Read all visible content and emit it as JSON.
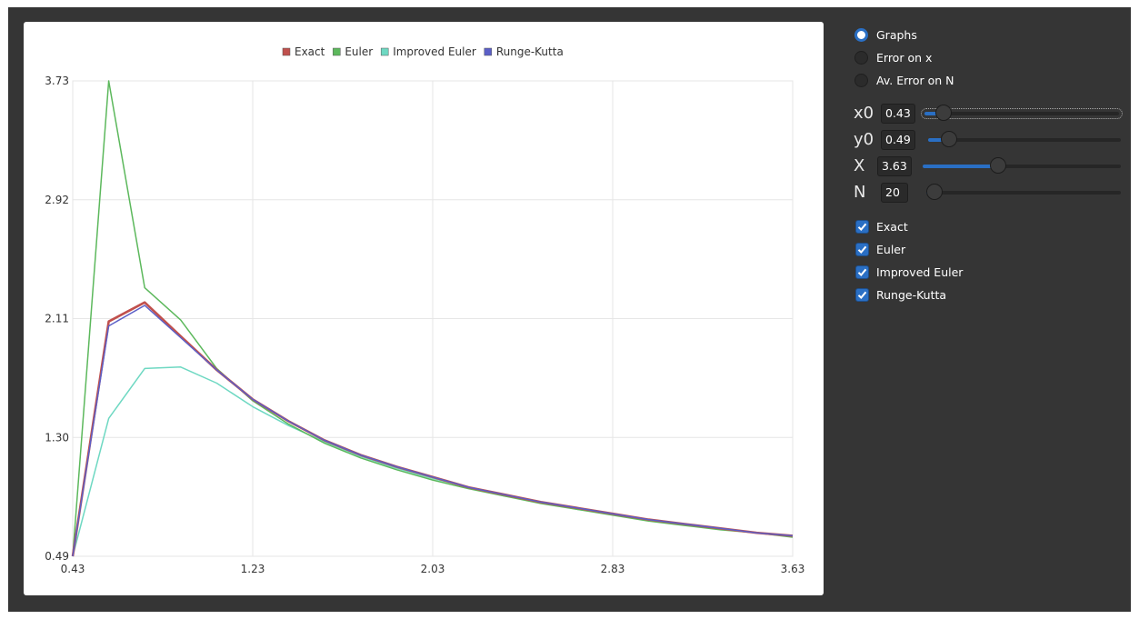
{
  "chart_data": {
    "type": "line",
    "title": "",
    "xlabel": "",
    "ylabel": "",
    "xlim": [
      0.43,
      3.63
    ],
    "ylim": [
      0.49,
      3.73
    ],
    "x_ticks": [
      "0.43",
      "1.23",
      "2.03",
      "2.83",
      "3.63"
    ],
    "y_ticks": [
      "0.49",
      "1.30",
      "2.11",
      "2.92",
      "3.73"
    ],
    "grid": true,
    "legend_position": "top",
    "x": [
      0.43,
      0.59,
      0.75,
      0.91,
      1.07,
      1.23,
      1.39,
      1.55,
      1.71,
      1.87,
      2.03,
      2.19,
      2.35,
      2.51,
      2.67,
      2.83,
      2.99,
      3.15,
      3.31,
      3.47,
      3.63
    ],
    "series": [
      {
        "name": "Exact",
        "color": "#c0504d",
        "values": [
          0.49,
          2.09,
          2.22,
          1.99,
          1.76,
          1.56,
          1.41,
          1.28,
          1.18,
          1.1,
          1.03,
          0.96,
          0.91,
          0.86,
          0.82,
          0.78,
          0.74,
          0.71,
          0.68,
          0.65,
          0.63
        ]
      },
      {
        "name": "Euler",
        "color": "#5cb85c",
        "values": [
          0.49,
          3.73,
          2.32,
          2.1,
          1.77,
          1.55,
          1.39,
          1.26,
          1.16,
          1.08,
          1.01,
          0.95,
          0.9,
          0.85,
          0.81,
          0.77,
          0.73,
          0.7,
          0.67,
          0.65,
          0.62
        ]
      },
      {
        "name": "Improved Euler",
        "color": "#6ed8c2",
        "values": [
          0.49,
          1.43,
          1.77,
          1.78,
          1.67,
          1.51,
          1.38,
          1.27,
          1.17,
          1.09,
          1.02,
          0.96,
          0.9,
          0.86,
          0.81,
          0.78,
          0.74,
          0.71,
          0.68,
          0.65,
          0.63
        ]
      },
      {
        "name": "Runge-Kutta",
        "color": "#5b5fc7",
        "values": [
          0.49,
          2.06,
          2.2,
          1.98,
          1.76,
          1.56,
          1.41,
          1.28,
          1.18,
          1.1,
          1.03,
          0.96,
          0.91,
          0.86,
          0.82,
          0.78,
          0.74,
          0.71,
          0.68,
          0.65,
          0.63
        ]
      }
    ]
  },
  "mode": {
    "options": [
      {
        "label": "Graphs",
        "selected": true
      },
      {
        "label": "Error on x",
        "selected": false
      },
      {
        "label": "Av. Error on N",
        "selected": false
      }
    ]
  },
  "params": {
    "x0": {
      "name": "x0",
      "value": "0.43",
      "fraction": 0.06
    },
    "y0": {
      "name": "y0",
      "value": "0.49",
      "fraction": 0.07
    },
    "X": {
      "name": "X",
      "value": "3.63",
      "fraction": 0.37
    },
    "N": {
      "name": "N",
      "value": "20",
      "fraction": 0.0
    }
  },
  "toggles": [
    {
      "label": "Exact",
      "checked": true
    },
    {
      "label": "Euler",
      "checked": true
    },
    {
      "label": "Improved Euler",
      "checked": true
    },
    {
      "label": "Runge-Kutta",
      "checked": true
    }
  ],
  "colors": {
    "window_bg": "#353535",
    "accent": "#2a6fc4"
  }
}
